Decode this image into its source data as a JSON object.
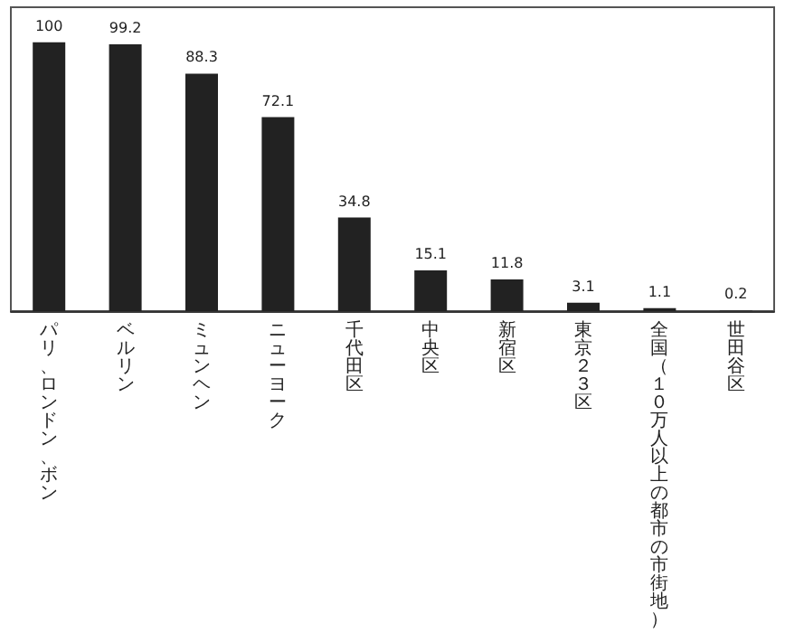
{
  "chart_data": {
    "type": "bar",
    "categories": [
      "パリ、ロンドン、ボン",
      "ベルリン",
      "ミュンヘン",
      "ニューヨーク",
      "千代田区",
      "中央区",
      "新宿区",
      "東京２３区",
      "全国（１０万人以上の都市の市街地）",
      "世田谷区"
    ],
    "values": [
      100,
      99.2,
      88.3,
      72.1,
      34.8,
      15.1,
      11.8,
      3.1,
      1.1,
      0.2
    ],
    "color": "#222222",
    "data_labels": true
  }
}
